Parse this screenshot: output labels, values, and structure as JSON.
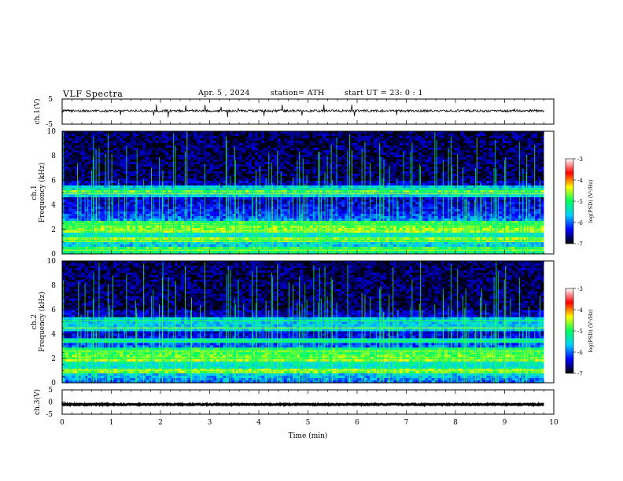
{
  "header": {
    "title": "VLF Spectra",
    "date": "Apr. 5 , 2024",
    "station": "station= ATH",
    "start": "start UT = 23: 0 : 1"
  },
  "chart_data": [
    {
      "type": "line",
      "name": "ch1-waveform",
      "ylabel": "ch.1(V)",
      "ylim": [
        -5,
        5
      ],
      "yticks": [
        "5",
        "-5"
      ],
      "xlim": [
        0,
        10
      ],
      "x_end_min": 9.8,
      "baseline_v": 0.3
    },
    {
      "type": "heatmap",
      "name": "ch1-spectrogram",
      "ylabel": "ch.1 Frequency (kHz)",
      "ylim": [
        0,
        10
      ],
      "yticks": [
        "0",
        "2",
        "4",
        "6",
        "8",
        "10"
      ],
      "xlim": [
        0,
        10
      ],
      "x_end_min": 9.8,
      "bands_khz": [
        0.3,
        1.1,
        1.9,
        2.4,
        4.9,
        5.3
      ],
      "colorbar": {
        "label": "log(PSD) (V²/Hz)",
        "range": [
          -7,
          -3
        ],
        "ticks": [
          "-3",
          "-4",
          "-5",
          "-6",
          "-7"
        ],
        "colors": [
          "#000000",
          "#0000ff",
          "#00d0ff",
          "#00ff60",
          "#ffff00",
          "#ff0000",
          "#ffffff"
        ]
      }
    },
    {
      "type": "heatmap",
      "name": "ch2-spectrogram",
      "ylabel": "ch.2 Frequency (kHz)",
      "ylim": [
        0,
        10
      ],
      "yticks": [
        "0",
        "2",
        "4",
        "6",
        "8",
        "10"
      ],
      "xlim": [
        0,
        10
      ],
      "x_end_min": 9.8,
      "bands_khz": [
        1.0,
        2.0,
        2.6,
        3.4,
        4.5,
        5.1
      ],
      "colorbar": {
        "label": "log(PSD) (V²/Hz)",
        "range": [
          -7,
          -3
        ],
        "ticks": [
          "-3",
          "-4",
          "-5",
          "-6",
          "-7"
        ],
        "colors": [
          "#000000",
          "#0000ff",
          "#00d0ff",
          "#00ff60",
          "#ffff00",
          "#ff0000",
          "#ffffff"
        ]
      }
    },
    {
      "type": "line",
      "name": "ch3-waveform",
      "ylabel": "ch.3(V)",
      "ylim": [
        -5,
        5
      ],
      "yticks": [
        "5",
        "0",
        "-5"
      ],
      "xlim": [
        0,
        10
      ],
      "x_end_min": 9.8,
      "baseline_v": -1.0
    }
  ],
  "x_axis": {
    "label": "Time (min)",
    "ticks": [
      "0",
      "1",
      "2",
      "3",
      "4",
      "5",
      "6",
      "7",
      "8",
      "9",
      "10"
    ]
  }
}
